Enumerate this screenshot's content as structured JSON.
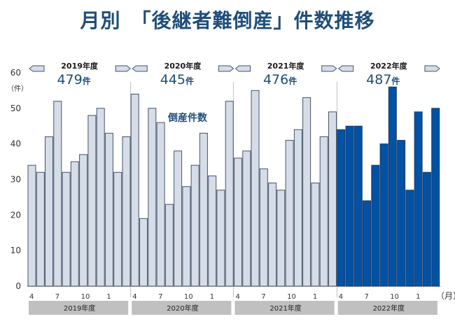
{
  "title": "月別　「後継者難倒産」件数推移",
  "chart_data": {
    "type": "bar",
    "title": "月別　「後継者難倒産」件数推移",
    "series_label": "倒産件数",
    "ylabel": "（件）",
    "xlabel_unit": "（月）",
    "ylim": [
      0,
      60
    ],
    "yticks": [
      0,
      10,
      20,
      30,
      40,
      50,
      60
    ],
    "grid": false,
    "x_tick_labels": [
      "4",
      "7",
      "10",
      "1"
    ],
    "colors": {
      "past": "#d6dde8",
      "past_edge": "#44546a",
      "current": "#0052a5",
      "current_edge": "#1f3a66",
      "band": "#c0c0c0",
      "divider": "#c8c8c8",
      "arrow_fill": "#d6dde8",
      "arrow_edge": "#44546a"
    },
    "months": [
      "4",
      "5",
      "6",
      "7",
      "8",
      "9",
      "10",
      "11",
      "12",
      "1",
      "2",
      "3"
    ],
    "fiscal_years": [
      {
        "name": "2019年度",
        "total": "479",
        "unit": "件",
        "highlight": false,
        "values": [
          34,
          32,
          42,
          52,
          32,
          35,
          37,
          48,
          50,
          43,
          32,
          42
        ]
      },
      {
        "name": "2020年度",
        "total": "445",
        "unit": "件",
        "highlight": false,
        "values": [
          54,
          19,
          50,
          46,
          23,
          38,
          28,
          34,
          43,
          31,
          27,
          52
        ]
      },
      {
        "name": "2021年度",
        "total": "476",
        "unit": "件",
        "highlight": false,
        "values": [
          36,
          38,
          55,
          33,
          29,
          27,
          41,
          44,
          53,
          29,
          42,
          49
        ]
      },
      {
        "name": "2022年度",
        "total": "487",
        "unit": "件",
        "highlight": true,
        "values": [
          44,
          45,
          45,
          24,
          34,
          40,
          56,
          41,
          27,
          49,
          32,
          50
        ]
      }
    ]
  }
}
